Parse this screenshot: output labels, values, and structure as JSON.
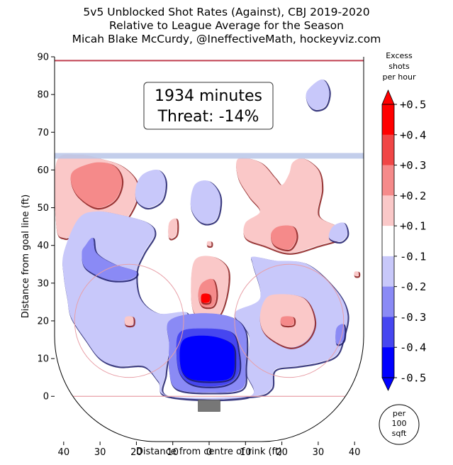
{
  "title_lines": [
    "5v5 Unblocked Shot Rates (Against), CBJ 2019-2020",
    "Relative to League Average for the Season",
    "Micah Blake McCurdy, @IneffectiveMath, hockeyviz.com"
  ],
  "annotation": [
    "1934 minutes",
    "Threat: -14%"
  ],
  "colorbar_title": [
    "Excess",
    "shots",
    "per hour"
  ],
  "per_area_badge": [
    "per",
    "100",
    "sqft"
  ],
  "colors": {
    "red_strong": "#ff0000",
    "red_mid": "#f04646",
    "red_light": "#f58a8a",
    "red_faint": "#fac8c8",
    "white": "#ffffff",
    "blue_faint": "#c8c8fa",
    "blue_light": "#8a8af5",
    "blue_mid": "#4646f0",
    "blue_strong": "#0000ff",
    "blue_line": "#b9c6e8",
    "red_line": "#e8a0a8"
  },
  "chart_data": {
    "type": "heatmap",
    "title": "5v5 Unblocked Shot Rates (Against), CBJ 2019-2020",
    "subtitle": "Relative to League Average for the Season",
    "xlabel": "Distance from centre of rink (ft)",
    "ylabel": "Distance from goal line (ft)",
    "xlim": [
      -42.5,
      42.5
    ],
    "ylim": [
      -12,
      90
    ],
    "x_ticks": [
      -40,
      -30,
      -20,
      -10,
      0,
      10,
      20,
      30,
      40
    ],
    "x_tick_labels": [
      "40",
      "30",
      "20",
      "10",
      "0",
      "10",
      "20",
      "30",
      "40"
    ],
    "y_ticks": [
      0,
      10,
      20,
      30,
      40,
      50,
      60,
      70,
      80,
      90
    ],
    "colorbar": {
      "label": "Excess shots per hour",
      "ticks": [
        "+0.5",
        "+0.4",
        "+0.3",
        "+0.2",
        "+0.1",
        "-0.1",
        "-0.2",
        "-0.3",
        "-0.4",
        "-0.5"
      ],
      "range": [
        -0.5,
        0.5
      ]
    },
    "minutes": 1934,
    "threat_pct": -14,
    "regions": [
      {
        "level": 0.15,
        "points": [
          [
            -42,
            62
          ],
          [
            -36,
            64
          ],
          [
            -30,
            63
          ],
          [
            -24,
            61
          ],
          [
            -20,
            57
          ],
          [
            -20,
            52
          ],
          [
            -24,
            46
          ],
          [
            -30,
            46
          ],
          [
            -37,
            43
          ],
          [
            -40,
            42
          ],
          [
            -42,
            45
          ]
        ]
      },
      {
        "level": 0.25,
        "points": [
          [
            -37,
            60
          ],
          [
            -31,
            62
          ],
          [
            -26,
            61
          ],
          [
            -24,
            57
          ],
          [
            -26,
            52
          ],
          [
            -31,
            50
          ],
          [
            -36,
            53
          ],
          [
            -38,
            57
          ]
        ]
      },
      {
        "level": -0.15,
        "points": [
          [
            -18,
            59
          ],
          [
            -14,
            60
          ],
          [
            -12,
            57
          ],
          [
            -13,
            52
          ],
          [
            -17,
            50
          ],
          [
            -20,
            52
          ],
          [
            -20,
            56
          ]
        ]
      },
      {
        "level": 0.15,
        "points": [
          [
            -11,
            46
          ],
          [
            -9,
            47
          ],
          [
            -9,
            43
          ],
          [
            -11,
            42
          ]
        ]
      },
      {
        "level": -0.15,
        "points": [
          [
            -4,
            56
          ],
          [
            0,
            57
          ],
          [
            3,
            53
          ],
          [
            2,
            47
          ],
          [
            -2,
            46
          ],
          [
            -5,
            50
          ]
        ]
      },
      {
        "level": 0.15,
        "points": [
          [
            8,
            63
          ],
          [
            14,
            62
          ],
          [
            18,
            58
          ],
          [
            20,
            56
          ],
          [
            22,
            59
          ],
          [
            23,
            62
          ],
          [
            26,
            63
          ],
          [
            30,
            60
          ],
          [
            31,
            55
          ],
          [
            30,
            48
          ],
          [
            35,
            45
          ],
          [
            36,
            42
          ],
          [
            30,
            40
          ],
          [
            22,
            38
          ],
          [
            15,
            40
          ],
          [
            10,
            42
          ],
          [
            10,
            46
          ],
          [
            14,
            49
          ],
          [
            11,
            53
          ],
          [
            8,
            58
          ]
        ]
      },
      {
        "level": 0.25,
        "points": [
          [
            19,
            45
          ],
          [
            23,
            45
          ],
          [
            24,
            42
          ],
          [
            22,
            39
          ],
          [
            18,
            40
          ],
          [
            17,
            43
          ]
        ]
      },
      {
        "level": -0.15,
        "points": [
          [
            34,
            45
          ],
          [
            37,
            46
          ],
          [
            38,
            43
          ],
          [
            36,
            41
          ],
          [
            33,
            42
          ]
        ]
      },
      {
        "level": -0.15,
        "points": [
          [
            27,
            81
          ],
          [
            31,
            84
          ],
          [
            33,
            81
          ],
          [
            32,
            77
          ],
          [
            29,
            76
          ],
          [
            27,
            78
          ]
        ]
      },
      {
        "level": -0.15,
        "points": [
          [
            -36,
            47
          ],
          [
            -31,
            49
          ],
          [
            -24,
            48
          ],
          [
            -17,
            46
          ],
          [
            -15,
            43
          ],
          [
            -18,
            38
          ],
          [
            -20,
            33
          ],
          [
            -19,
            26
          ],
          [
            -14,
            22
          ],
          [
            -6,
            22
          ],
          [
            -10,
            15
          ],
          [
            -12,
            6
          ],
          [
            -11,
            0
          ],
          [
            11,
            0
          ],
          [
            10,
            7
          ],
          [
            11,
            16
          ],
          [
            7,
            22
          ],
          [
            14,
            26
          ],
          [
            12,
            35
          ],
          [
            12,
            37
          ],
          [
            18,
            36
          ],
          [
            27,
            35
          ],
          [
            35,
            28
          ],
          [
            38,
            22
          ],
          [
            37,
            16
          ],
          [
            35,
            11
          ],
          [
            30,
            9
          ],
          [
            24,
            8
          ],
          [
            18,
            7
          ],
          [
            17,
            2
          ],
          [
            11,
            0
          ],
          [
            -11,
            0
          ],
          [
            -14,
            4
          ],
          [
            -18,
            8
          ],
          [
            -25,
            8
          ],
          [
            -30,
            10
          ],
          [
            -34,
            15
          ],
          [
            -38,
            21
          ],
          [
            -39,
            26
          ],
          [
            -40,
            32
          ],
          [
            -40,
            38
          ]
        ]
      },
      {
        "level": -0.25,
        "points": [
          [
            -34,
            40
          ],
          [
            -32,
            42
          ],
          [
            -31,
            38
          ],
          [
            -26,
            35
          ],
          [
            -20,
            33
          ],
          [
            -22,
            31
          ],
          [
            -28,
            31
          ],
          [
            -34,
            34
          ],
          [
            -35,
            38
          ]
        ]
      },
      {
        "level": 0.15,
        "points": [
          [
            -4,
            36
          ],
          [
            1,
            37
          ],
          [
            5,
            34
          ],
          [
            5,
            28
          ],
          [
            3,
            22
          ],
          [
            0,
            21
          ],
          [
            -4,
            22
          ],
          [
            -5,
            28
          ]
        ]
      },
      {
        "level": 0.25,
        "points": [
          [
            -2,
            30
          ],
          [
            1,
            31
          ],
          [
            2,
            27
          ],
          [
            1,
            24
          ],
          [
            -2,
            24
          ],
          [
            -3,
            27
          ]
        ]
      },
      {
        "level": 0.4,
        "points": [
          [
            -2,
            27
          ],
          [
            0,
            27
          ],
          [
            0,
            25
          ],
          [
            -2,
            25
          ]
        ]
      },
      {
        "level": 0.15,
        "points": [
          [
            -23,
            21
          ],
          [
            -21,
            21
          ],
          [
            -21,
            19
          ],
          [
            -23,
            19
          ]
        ]
      },
      {
        "level": 0.15,
        "points": [
          [
            -0.5,
            41
          ],
          [
            0.5,
            41
          ],
          [
            0.5,
            40
          ],
          [
            -0.5,
            40
          ]
        ]
      },
      {
        "level": 0.15,
        "points": [
          [
            15,
            25
          ],
          [
            18,
            27
          ],
          [
            26,
            26
          ],
          [
            29,
            20
          ],
          [
            27,
            15
          ],
          [
            22,
            13
          ],
          [
            16,
            16
          ],
          [
            14,
            20
          ]
        ]
      },
      {
        "level": 0.25,
        "points": [
          [
            20,
            21
          ],
          [
            23,
            21
          ],
          [
            23,
            19
          ],
          [
            20,
            19
          ]
        ]
      },
      {
        "level": -0.25,
        "points": [
          [
            35,
            18
          ],
          [
            37,
            19
          ],
          [
            37,
            15
          ],
          [
            35,
            14
          ]
        ]
      },
      {
        "level": 0.15,
        "points": [
          [
            40,
            33
          ],
          [
            41,
            33
          ],
          [
            41,
            32
          ],
          [
            40,
            32
          ]
        ]
      },
      {
        "level": -0.25,
        "points": [
          [
            -11,
            20
          ],
          [
            -3,
            22
          ],
          [
            6,
            21
          ],
          [
            10,
            17
          ],
          [
            10,
            8
          ],
          [
            9,
            2
          ],
          [
            0,
            1
          ],
          [
            -9,
            2
          ],
          [
            -11,
            7
          ],
          [
            -11,
            14
          ]
        ]
      },
      {
        "level": -0.35,
        "points": [
          [
            -8,
            17
          ],
          [
            -2,
            18
          ],
          [
            6,
            17
          ],
          [
            8,
            12
          ],
          [
            8,
            6
          ],
          [
            4,
            3
          ],
          [
            -4,
            3
          ],
          [
            -8,
            6
          ],
          [
            -9,
            12
          ]
        ]
      },
      {
        "level": -0.45,
        "points": [
          [
            -7,
            15
          ],
          [
            0,
            16
          ],
          [
            6,
            14
          ],
          [
            7,
            10
          ],
          [
            6,
            5
          ],
          [
            0,
            4
          ],
          [
            -6,
            5
          ],
          [
            -8,
            9
          ]
        ]
      }
    ]
  }
}
